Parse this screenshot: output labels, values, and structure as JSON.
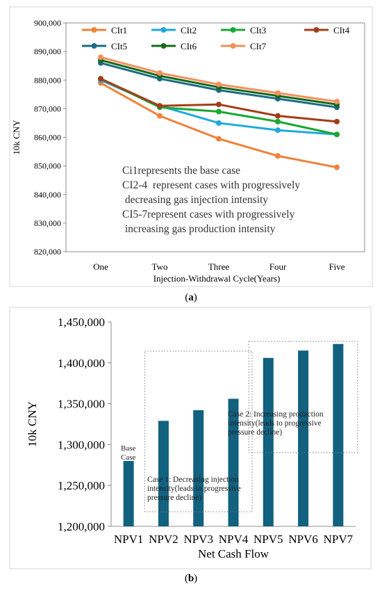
{
  "chart_data": [
    {
      "type": "line",
      "x": [
        "One",
        "Two",
        "Three",
        "Four",
        "Five"
      ],
      "xlabel": "Injection-Withdrawal Cycle(Years)",
      "ylabel": "10k CNY",
      "ylim": [
        820000,
        900000
      ],
      "yticks": [
        820000,
        830000,
        840000,
        850000,
        860000,
        870000,
        880000,
        890000,
        900000
      ],
      "ytick_labels": [
        "820,000",
        "830,000",
        "840,000",
        "850,000",
        "860,000",
        "870,000",
        "880,000",
        "890,000",
        "900,000"
      ],
      "grid": false,
      "legend_position": "top",
      "series": [
        {
          "name": "CIt1",
          "color": "#f0813b",
          "values": [
            879000,
            867500,
            859500,
            853500,
            849500
          ]
        },
        {
          "name": "CIt2",
          "color": "#1fa9df",
          "values": [
            880000,
            871000,
            865000,
            862500,
            861000
          ]
        },
        {
          "name": "CIt3",
          "color": "#1aa733",
          "values": [
            880500,
            870500,
            869000,
            865500,
            861000
          ]
        },
        {
          "name": "CIt4",
          "color": "#a33d17",
          "values": [
            880500,
            871000,
            871500,
            867500,
            865500
          ]
        },
        {
          "name": "CIt5",
          "color": "#1b6b86",
          "values": [
            886000,
            880500,
            876500,
            873500,
            870500
          ]
        },
        {
          "name": "CIt6",
          "color": "#156a17",
          "values": [
            887000,
            881500,
            877500,
            874500,
            871500
          ]
        },
        {
          "name": "CIt7",
          "color": "#f58f5d",
          "values": [
            888000,
            882500,
            878500,
            875500,
            872500
          ]
        }
      ],
      "annotations": [
        "Ci1represents the base case",
        "CI2-4  represent cases with progressively",
        " decreasing gas injection intensity",
        "CI5-7represent cases with progressively",
        " increasing gas production intensity"
      ],
      "panel_label": "(a)"
    },
    {
      "type": "bar",
      "categories": [
        "NPV1",
        "NPV2",
        "NPV3",
        "NPV4",
        "NPV5",
        "NPV6",
        "NPV7"
      ],
      "values": [
        1280000,
        1329000,
        1342000,
        1356000,
        1406000,
        1415000,
        1423000
      ],
      "color": "#11617f",
      "xlabel": "Net Cash Flow",
      "ylabel": "10k CNY",
      "ylim": [
        1200000,
        1450000
      ],
      "yticks": [
        1200000,
        1250000,
        1300000,
        1350000,
        1400000,
        1450000
      ],
      "ytick_labels": [
        "1,200,000",
        "1,250,000",
        "1,300,000",
        "1,350,000",
        "1,400,000",
        "1,450,000"
      ],
      "grid": false,
      "annotations": {
        "base": [
          "Base",
          "Case"
        ],
        "case1": [
          "Case 1: Decreasing injection",
          "intensity(leads to progressive",
          "pressure decline)"
        ],
        "case2": [
          "Case 2: Increasing production",
          "intensity(leads to progressive",
          "pressure decline)"
        ]
      },
      "panel_label": "(b)"
    }
  ]
}
